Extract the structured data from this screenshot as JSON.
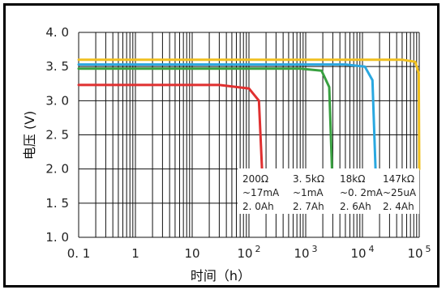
{
  "chart_data": {
    "type": "line",
    "title": "",
    "xlabel": "时间（h）",
    "ylabel": "电压 (V)",
    "x_scale": "log",
    "xlim": [
      0.1,
      100000
    ],
    "ylim": [
      1.0,
      4.0
    ],
    "grid": true,
    "x_ticks": [
      {
        "value": 0.1,
        "label": "0. 1",
        "base": "",
        "exp": ""
      },
      {
        "value": 1,
        "label": "1",
        "base": "",
        "exp": ""
      },
      {
        "value": 10,
        "label": "10",
        "base": "",
        "exp": ""
      },
      {
        "value": 100,
        "label": "",
        "base": "10",
        "exp": "2"
      },
      {
        "value": 1000,
        "label": "",
        "base": "10",
        "exp": "3"
      },
      {
        "value": 10000,
        "label": "",
        "base": "10",
        "exp": "4"
      },
      {
        "value": 100000,
        "label": "",
        "base": "10",
        "exp": "5"
      }
    ],
    "y_ticks": [
      {
        "value": 1.0,
        "label": "1. 0"
      },
      {
        "value": 1.5,
        "label": "1. 5"
      },
      {
        "value": 2.0,
        "label": "2. 0"
      },
      {
        "value": 2.5,
        "label": "2. 5"
      },
      {
        "value": 3.0,
        "label": "3. 0"
      },
      {
        "value": 3.5,
        "label": "3. 5"
      },
      {
        "value": 4.0,
        "label": "4. 0"
      }
    ],
    "series": [
      {
        "color": "#e03030",
        "x": [
          0.1,
          30,
          100,
          150,
          170
        ],
        "y": [
          3.23,
          3.23,
          3.18,
          3.0,
          2.0
        ]
      },
      {
        "color": "#38a040",
        "x": [
          0.1,
          800,
          1900,
          2600,
          2900
        ],
        "y": [
          3.47,
          3.47,
          3.44,
          3.2,
          2.0
        ]
      },
      {
        "color": "#2aa8e0",
        "x": [
          0.1,
          5000,
          11000,
          15000,
          17000
        ],
        "y": [
          3.53,
          3.53,
          3.5,
          3.3,
          2.0
        ]
      },
      {
        "color": "#f0c020",
        "x": [
          0.1,
          50000,
          85000,
          98000,
          100000
        ],
        "y": [
          3.6,
          3.6,
          3.57,
          3.4,
          2.0
        ]
      }
    ],
    "annotations": [
      {
        "lines": [
          "200Ω",
          "~17mA",
          "2. 0Ah"
        ]
      },
      {
        "lines": [
          "3. 5kΩ",
          "~1mA",
          "2. 7Ah"
        ]
      },
      {
        "lines": [
          "18kΩ",
          "~0. 2mA",
          "2. 6Ah"
        ]
      },
      {
        "lines": [
          "147kΩ",
          "~25uA",
          "2. 4Ah"
        ]
      }
    ]
  }
}
